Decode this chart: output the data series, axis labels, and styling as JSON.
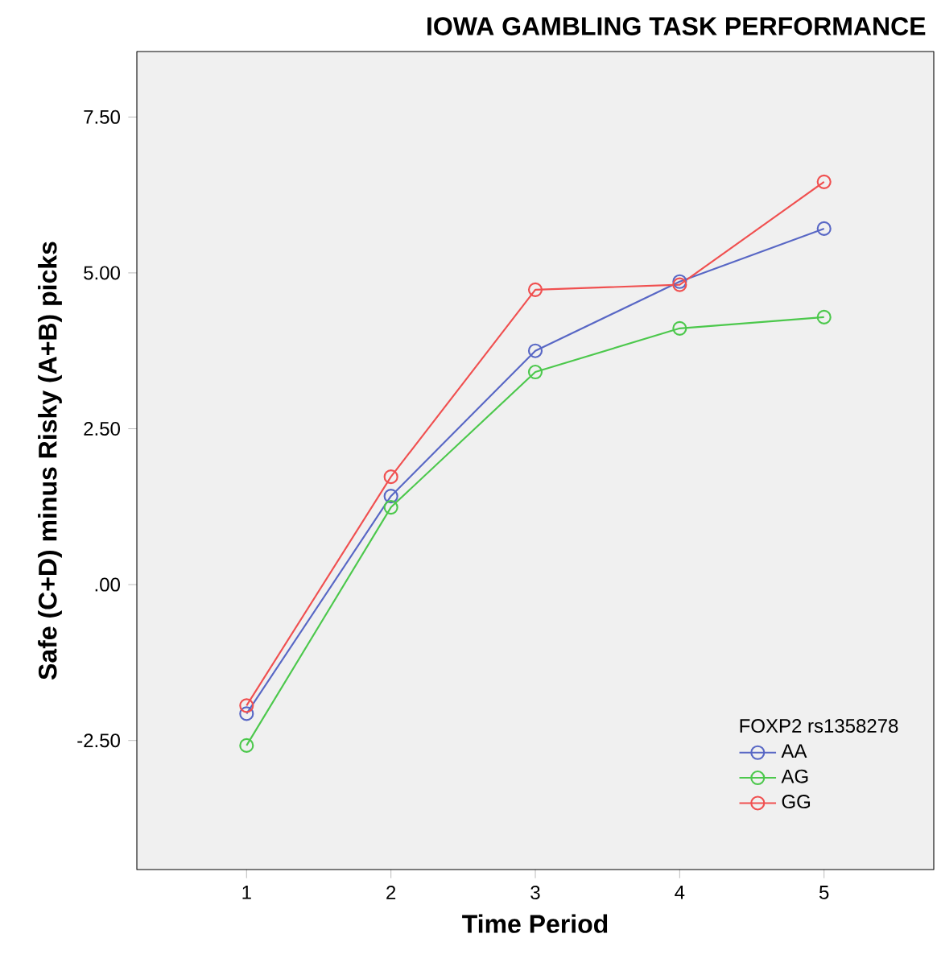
{
  "chart_data": {
    "type": "line",
    "title": "IOWA GAMBLING TASK PERFORMANCE",
    "xlabel": "Time Period",
    "ylabel": "Safe (C+D) minus Risky (A+B) picks",
    "legend_title": "FOXP2 rs1358278",
    "x": [
      1,
      2,
      3,
      4,
      5
    ],
    "series": [
      {
        "name": "AA",
        "color": "#5867c5",
        "values": [
          -2.07,
          1.42,
          3.75,
          4.86,
          5.71
        ]
      },
      {
        "name": "AG",
        "color": "#4cc84c",
        "values": [
          -2.58,
          1.24,
          3.41,
          4.11,
          4.29
        ]
      },
      {
        "name": "GG",
        "color": "#f05050",
        "values": [
          -1.94,
          1.73,
          4.73,
          4.81,
          6.46
        ]
      }
    ],
    "xlim": [
      0.24,
      5.76
    ],
    "ylim": [
      -4.57,
      8.55
    ],
    "xticks": [
      1,
      2,
      3,
      4,
      5
    ],
    "yticks": [
      {
        "value": -2.5,
        "label": "-2.50"
      },
      {
        "value": 0,
        "label": ".00"
      },
      {
        "value": 2.5,
        "label": "2.50"
      },
      {
        "value": 5,
        "label": "5.00"
      },
      {
        "value": 7.5,
        "label": "7.50"
      }
    ],
    "grid": false,
    "legend": "bottom right",
    "marker": "circle",
    "line_style": "solid"
  }
}
